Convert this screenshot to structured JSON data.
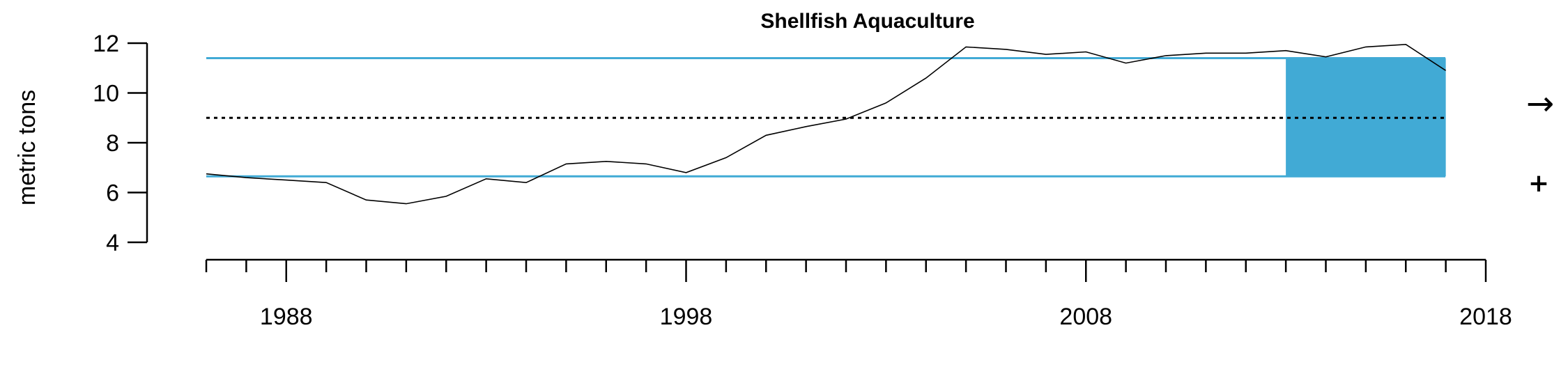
{
  "chart_data": {
    "type": "line",
    "title": "Shellfish Aquaculture",
    "xlabel": "",
    "ylabel": "metric tons",
    "xlim": [
      1986,
      2018
    ],
    "ylim": [
      4,
      12
    ],
    "x_ticks": [
      1988,
      1998,
      2008,
      2018
    ],
    "y_ticks": [
      4,
      6,
      8,
      10,
      12
    ],
    "x": [
      1986,
      1987,
      1988,
      1989,
      1990,
      1991,
      1992,
      1993,
      1994,
      1995,
      1996,
      1997,
      1998,
      1999,
      2000,
      2001,
      2002,
      2003,
      2004,
      2005,
      2006,
      2007,
      2008,
      2009,
      2010,
      2011,
      2012,
      2013,
      2014,
      2015,
      2016,
      2017
    ],
    "y": [
      6.75,
      6.6,
      6.5,
      6.4,
      5.7,
      5.55,
      5.85,
      6.55,
      6.4,
      7.15,
      7.25,
      7.15,
      6.8,
      7.4,
      8.3,
      8.65,
      8.95,
      9.6,
      10.6,
      11.85,
      11.75,
      11.55,
      11.65,
      11.2,
      11.5,
      11.6,
      11.6,
      11.7,
      11.45,
      11.85,
      11.95,
      10.9
    ],
    "mean": 9.0,
    "upper_sd": 11.4,
    "lower_sd": 6.65,
    "highlight_range": [
      2013,
      2017
    ],
    "colors": {
      "sd_lines": "#41AAD5",
      "highlight": "#41AAD5",
      "line": "#000000",
      "mean_line": "#000000"
    },
    "trend_symbol": "→",
    "mean_symbol": "+",
    "trend_icon": "right-arrow-icon",
    "mean_icon": "plus-icon"
  }
}
